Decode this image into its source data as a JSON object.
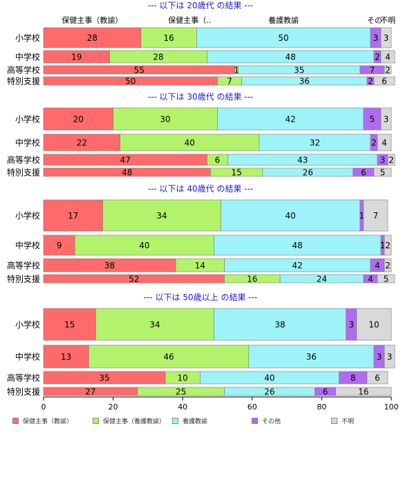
{
  "chart_data": {
    "type": "bar",
    "orientation": "horizontal",
    "stacked": true,
    "column_headers": [
      "保健主事（教諭）",
      "保健主事（..",
      "養護教諭",
      "その",
      "不明"
    ],
    "xlim": [
      0,
      100
    ],
    "xticks": [
      "0",
      "20",
      "40",
      "60",
      "80",
      "100"
    ],
    "legend_position": "bottom",
    "series": [
      {
        "name": "保健主事（教諭）",
        "color": "#FF6B6B"
      },
      {
        "name": "保健主事（養護教諭）",
        "color": "#B3F36B"
      },
      {
        "name": "養護教諭",
        "color": "#9DF3F7"
      },
      {
        "name": "その他",
        "color": "#B06CF0"
      },
      {
        "name": "不明",
        "color": "#D9D9D9"
      }
    ],
    "panels": [
      {
        "title": "--- 以下は 20歳代 の結果 ---",
        "categories": [
          "小学校",
          "中学校",
          "高等学校",
          "特別支援"
        ],
        "values": [
          [
            28,
            16,
            50,
            3,
            3
          ],
          [
            19,
            28,
            48,
            2,
            4
          ],
          [
            55,
            1,
            35,
            7,
            2
          ],
          [
            50,
            7,
            36,
            2,
            6
          ]
        ]
      },
      {
        "title": "--- 以下は 30歳代 の結果 ---",
        "categories": [
          "小学校",
          "中学校",
          "高等学校",
          "特別支援"
        ],
        "values": [
          [
            20,
            30,
            42,
            5,
            3
          ],
          [
            22,
            40,
            32,
            2,
            4
          ],
          [
            47,
            6,
            43,
            3,
            2
          ],
          [
            48,
            15,
            26,
            6,
            5
          ]
        ]
      },
      {
        "title": "--- 以下は 40歳代 の結果 ---",
        "categories": [
          "小学校",
          "中学校",
          "高等学校",
          "特別支援"
        ],
        "values": [
          [
            17,
            34,
            40,
            1,
            7
          ],
          [
            9,
            40,
            48,
            1,
            2
          ],
          [
            38,
            14,
            42,
            4,
            2
          ],
          [
            52,
            16,
            24,
            4,
            5
          ]
        ]
      },
      {
        "title": "--- 以下は 50歳以上 の結果 ---",
        "categories": [
          "小学校",
          "中学校",
          "高等学校",
          "特別支援"
        ],
        "values": [
          [
            15,
            34,
            38,
            3,
            10
          ],
          [
            13,
            46,
            36,
            3,
            3
          ],
          [
            35,
            10,
            40,
            8,
            6
          ],
          [
            27,
            25,
            26,
            6,
            16
          ]
        ]
      }
    ]
  }
}
